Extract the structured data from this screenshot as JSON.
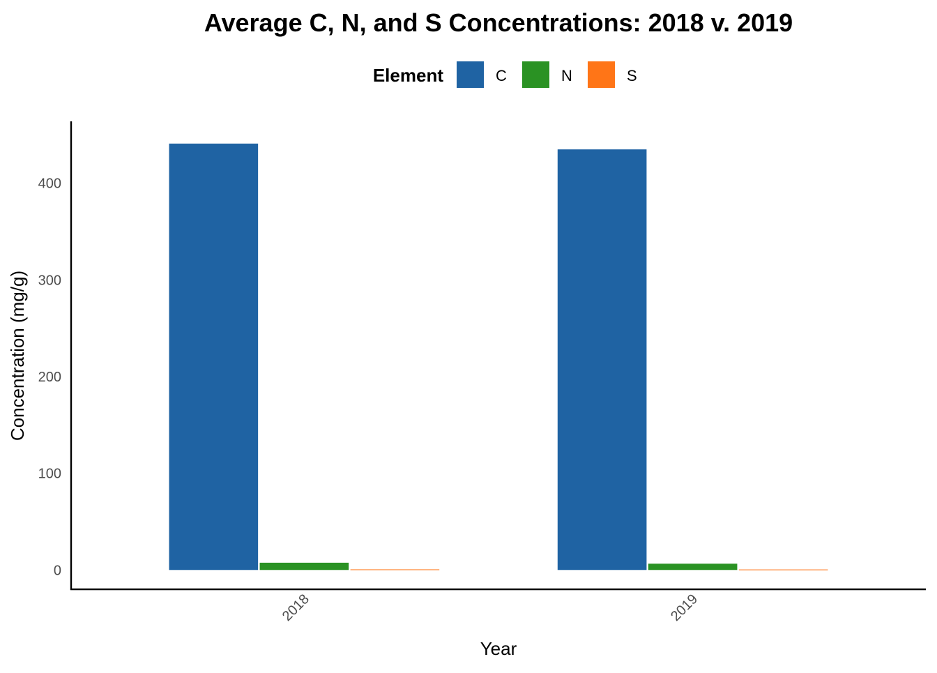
{
  "chart_data": {
    "type": "bar",
    "title": "Average C, N, and S Concentrations: 2018 v. 2019",
    "xlabel": "Year",
    "ylabel": "Concentration (mg/g)",
    "categories": [
      "2018",
      "2019"
    ],
    "legend": {
      "title": "Element",
      "placement": "top"
    },
    "series": [
      {
        "name": "C",
        "color": "#1f63a3",
        "values": [
          441,
          435
        ]
      },
      {
        "name": "N",
        "color": "#2a9223",
        "values": [
          7.5,
          6.5
        ]
      },
      {
        "name": "S",
        "color": "#ff7517",
        "values": [
          0.6,
          0.5
        ]
      }
    ],
    "ylim": [
      -20,
      464
    ],
    "yticks": [
      0,
      100,
      200,
      300,
      400
    ],
    "grid": false
  }
}
